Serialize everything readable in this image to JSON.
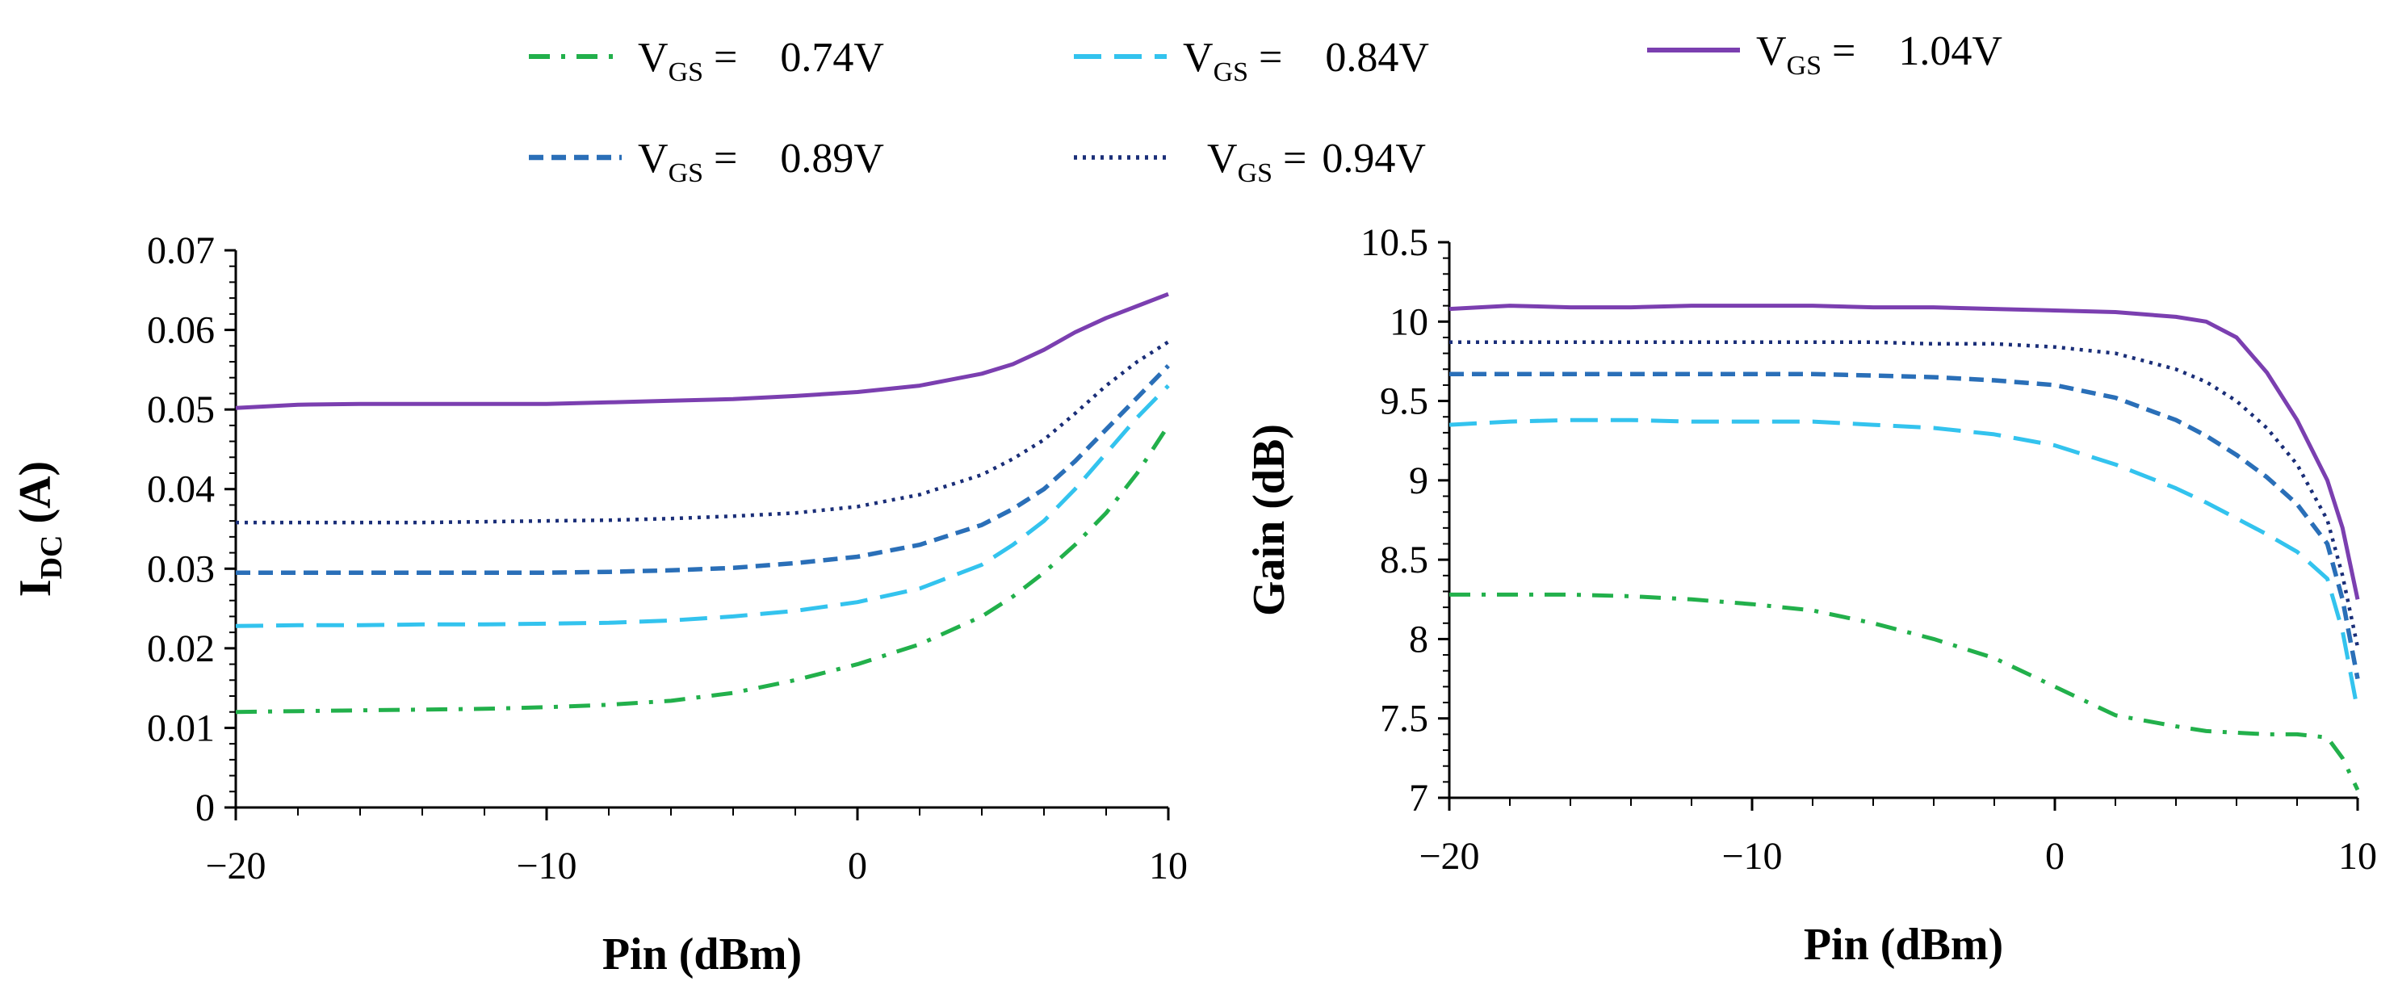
{
  "legend": {
    "entries": [
      {
        "prefix": "V",
        "sub": "GS",
        "eq": " = ",
        "value": "0.74V",
        "color": "#22b04b",
        "style": "dashdot"
      },
      {
        "prefix": "V",
        "sub": "GS",
        "eq": " = ",
        "value": "0.84V",
        "color": "#33c3ee",
        "style": "longdash"
      },
      {
        "prefix": "V",
        "sub": "GS",
        "eq": " = ",
        "value": "1.04V",
        "color": "#7b3fb0",
        "style": "solid"
      },
      {
        "prefix": "V",
        "sub": "GS",
        "eq": " = ",
        "value": "0.89V",
        "color": "#2a6fb8",
        "style": "dash"
      },
      {
        "prefix": "V",
        "sub": "GS",
        "eq": " = ",
        "value": "0.94V",
        "color": "#1a2e78",
        "style": "dot"
      }
    ]
  },
  "chart_data": [
    {
      "type": "line",
      "xlabel": "Pin (dBm)",
      "ylabel_main": "I",
      "ylabel_sub": "DC",
      "ylabel_unit": " (A)",
      "xlim": [
        -20,
        10
      ],
      "ylim": [
        0,
        0.07
      ],
      "xticks": [
        -20,
        -10,
        0,
        10
      ],
      "xtick_labels": [
        "−20",
        "−10",
        "0",
        "10"
      ],
      "yticks": [
        0,
        0.01,
        0.02,
        0.03,
        0.04,
        0.05,
        0.06,
        0.07
      ],
      "ytick_labels": [
        "0",
        "0.01",
        "0.02",
        "0.03",
        "0.04",
        "0.05",
        "0.06",
        "0.07"
      ],
      "x": [
        -20,
        -18,
        -16,
        -14,
        -12,
        -10,
        -8,
        -6,
        -4,
        -2,
        0,
        2,
        4,
        5,
        6,
        7,
        8,
        9,
        10
      ],
      "series": [
        {
          "name": "VGS = 0.74V",
          "values": [
            0.012,
            0.0121,
            0.0122,
            0.0123,
            0.0124,
            0.0126,
            0.0129,
            0.0134,
            0.0144,
            0.016,
            0.018,
            0.0205,
            0.024,
            0.0265,
            0.0295,
            0.033,
            0.037,
            0.042,
            0.048
          ]
        },
        {
          "name": "VGS = 0.84V",
          "values": [
            0.0228,
            0.0229,
            0.0229,
            0.023,
            0.023,
            0.0231,
            0.0232,
            0.0235,
            0.024,
            0.0247,
            0.0258,
            0.0275,
            0.0305,
            0.033,
            0.036,
            0.04,
            0.0445,
            0.049,
            0.053
          ]
        },
        {
          "name": "VGS = 0.89V",
          "values": [
            0.0295,
            0.0295,
            0.0295,
            0.0295,
            0.0295,
            0.0295,
            0.0296,
            0.0298,
            0.0301,
            0.0307,
            0.0315,
            0.033,
            0.0355,
            0.0375,
            0.04,
            0.0435,
            0.0475,
            0.0515,
            0.0555
          ]
        },
        {
          "name": "VGS = 0.94V",
          "values": [
            0.0358,
            0.0358,
            0.0358,
            0.0358,
            0.0359,
            0.036,
            0.0361,
            0.0363,
            0.0366,
            0.037,
            0.0378,
            0.0393,
            0.0418,
            0.0438,
            0.0462,
            0.0495,
            0.053,
            0.056,
            0.0585
          ]
        },
        {
          "name": "VGS = 1.04V",
          "values": [
            0.0502,
            0.0506,
            0.0507,
            0.0507,
            0.0507,
            0.0507,
            0.0509,
            0.0511,
            0.0513,
            0.0517,
            0.0522,
            0.053,
            0.0545,
            0.0557,
            0.0575,
            0.0597,
            0.0615,
            0.063,
            0.0645
          ]
        }
      ]
    },
    {
      "type": "line",
      "xlabel": "Pin (dBm)",
      "ylabel": "Gain (dB)",
      "xlim": [
        -20,
        10
      ],
      "ylim": [
        7,
        10.5
      ],
      "xticks": [
        -20,
        -10,
        0,
        10
      ],
      "xtick_labels": [
        "−20",
        "−10",
        "0",
        "10"
      ],
      "yticks": [
        7,
        7.5,
        8,
        8.5,
        9,
        9.5,
        10,
        10.5
      ],
      "ytick_labels": [
        "7",
        "7.5",
        "8",
        "8.5",
        "9",
        "9.5",
        "10",
        "10.5"
      ],
      "x": [
        -20,
        -18,
        -16,
        -14,
        -12,
        -10,
        -8,
        -6,
        -4,
        -2,
        0,
        2,
        4,
        5,
        6,
        7,
        8,
        9,
        9.5,
        10
      ],
      "series": [
        {
          "name": "VGS = 0.74V",
          "values": [
            8.28,
            8.28,
            8.28,
            8.27,
            8.25,
            8.22,
            8.18,
            8.1,
            8.0,
            7.88,
            7.7,
            7.52,
            7.45,
            7.42,
            7.41,
            7.4,
            7.4,
            7.38,
            7.25,
            7.05
          ]
        },
        {
          "name": "VGS = 0.84V",
          "values": [
            9.35,
            9.37,
            9.38,
            9.38,
            9.37,
            9.37,
            9.37,
            9.35,
            9.33,
            9.29,
            9.22,
            9.1,
            8.95,
            8.86,
            8.76,
            8.66,
            8.55,
            8.38,
            8.05,
            7.55
          ]
        },
        {
          "name": "VGS = 0.89V",
          "values": [
            9.67,
            9.67,
            9.67,
            9.67,
            9.67,
            9.67,
            9.67,
            9.66,
            9.65,
            9.63,
            9.6,
            9.52,
            9.38,
            9.28,
            9.16,
            9.02,
            8.85,
            8.6,
            8.25,
            7.75
          ]
        },
        {
          "name": "VGS = 0.94V",
          "values": [
            9.87,
            9.87,
            9.87,
            9.87,
            9.87,
            9.87,
            9.87,
            9.87,
            9.86,
            9.86,
            9.84,
            9.8,
            9.7,
            9.62,
            9.5,
            9.33,
            9.1,
            8.75,
            8.4,
            7.95
          ]
        },
        {
          "name": "VGS = 1.04V",
          "values": [
            10.08,
            10.1,
            10.09,
            10.09,
            10.1,
            10.1,
            10.1,
            10.09,
            10.09,
            10.08,
            10.07,
            10.06,
            10.03,
            10.0,
            9.9,
            9.68,
            9.38,
            9.0,
            8.7,
            8.25
          ]
        }
      ]
    }
  ]
}
